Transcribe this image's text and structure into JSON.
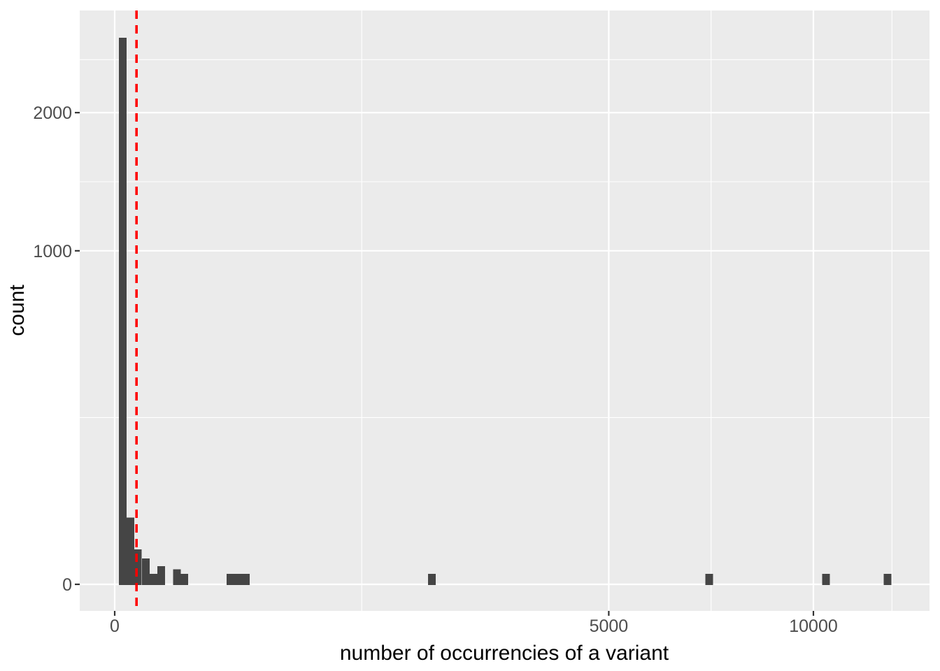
{
  "chart_data": {
    "type": "bar",
    "subtype": "histogram",
    "title": "",
    "xlabel": "number of occurrencies of a variant",
    "ylabel": "count",
    "x_scale": "sqrt",
    "y_scale": "sqrt",
    "x_ticks": [
      0,
      5000,
      10000
    ],
    "y_ticks": [
      0,
      1000,
      2000
    ],
    "x_minor_breaks": [
      1250,
      7286,
      12374
    ],
    "y_minor_breaks": [
      250,
      1457,
      2475
    ],
    "x_range": [
      0,
      13600
    ],
    "y_range": [
      0,
      2950
    ],
    "grid": "on",
    "legend": "none",
    "bin_halfwidth_sqrt_units": 0.55,
    "bins": [
      {
        "x": 1.3,
        "count": 2684
      },
      {
        "x": 5,
        "count": 40
      },
      {
        "x": 11,
        "count": 11
      },
      {
        "x": 20,
        "count": 6
      },
      {
        "x": 31,
        "count": 1
      },
      {
        "x": 44,
        "count": 3
      },
      {
        "x": 79,
        "count": 2
      },
      {
        "x": 99,
        "count": 1
      },
      {
        "x": 274,
        "count": 1
      },
      {
        "x": 312,
        "count": 1
      },
      {
        "x": 352,
        "count": 1
      },
      {
        "x": 2061,
        "count": 1
      },
      {
        "x": 7240,
        "count": 1
      },
      {
        "x": 10363,
        "count": 1
      },
      {
        "x": 12232,
        "count": 1
      }
    ],
    "vline": {
      "x": 9.75,
      "color": "#FF0000",
      "linetype": "dashed"
    },
    "style": {
      "panel_bg": "#EBEBEB",
      "grid_color": "#FFFFFF",
      "bar_fill": "#454545",
      "tick_label_color": "#4D4D4D",
      "tick_mark_color": "#333333",
      "axis_title_color": "#000000",
      "outer_bg": "#FFFFFF"
    }
  }
}
